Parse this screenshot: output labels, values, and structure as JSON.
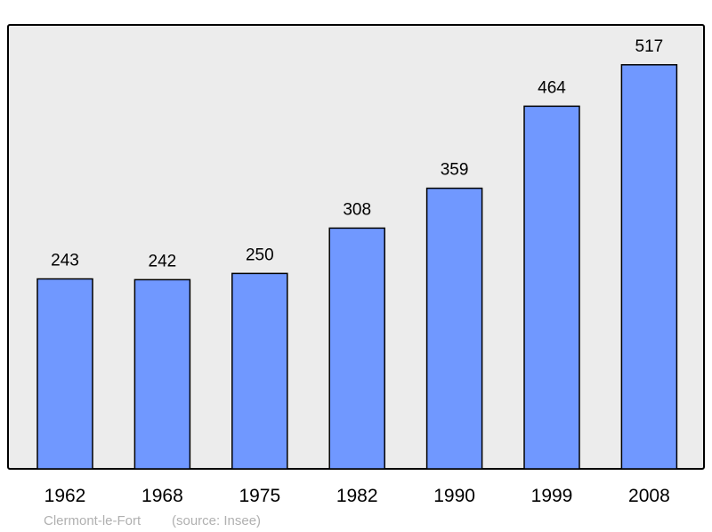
{
  "chart_data": {
    "type": "bar",
    "title": "",
    "xlabel": "",
    "ylabel": "",
    "categories": [
      "1962",
      "1968",
      "1975",
      "1982",
      "1990",
      "1999",
      "2008"
    ],
    "values": [
      243,
      242,
      250,
      308,
      359,
      464,
      517
    ],
    "ylim": [
      0,
      568
    ],
    "grid": false,
    "data_labels": true,
    "colors": {
      "bar": "#7098ff",
      "background": "#ececec",
      "frame": "#000000"
    }
  },
  "footer": {
    "place": "Clermont-le-Fort",
    "source": "(source: Insee)"
  }
}
